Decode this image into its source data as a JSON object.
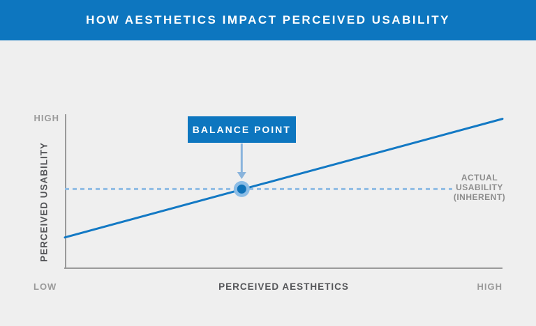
{
  "header": {
    "title": "HOW AESTHETICS IMPACT PERCEIVED USABILITY"
  },
  "chart_data": {
    "type": "line",
    "title": "HOW AESTHETICS IMPACT PERCEIVED USABILITY",
    "xlabel": "PERCEIVED AESTHETICS",
    "ylabel": "PERCEIVED USABILITY",
    "x_tick_labels": [
      "LOW",
      "HIGH"
    ],
    "y_tick_labels": [
      "HIGH"
    ],
    "axis_style": "qualitative LOW-to-HIGH axes, no numeric ticks, no gridlines",
    "legend": "none",
    "series": [
      {
        "name": "perceived usability (rises with aesthetics)",
        "style": "solid",
        "x": [
          0.0,
          1.0
        ],
        "y": [
          0.2,
          0.97
        ]
      },
      {
        "name": "actual usability (inherent)",
        "style": "dashed",
        "label_lines": [
          "ACTUAL",
          "USABILITY",
          "(INHERENT)"
        ],
        "x": [
          0.0,
          0.885
        ],
        "y": [
          0.514,
          0.514
        ]
      }
    ],
    "annotations": [
      {
        "label": "BALANCE POINT",
        "x": 0.404,
        "y": 0.514,
        "marker": "dot-with-halo"
      }
    ]
  },
  "colors": {
    "banner_blue": "#0d76bf",
    "trend_blue": "#1379c4",
    "dashed_blue": "#8fbce4",
    "arrow_blue": "#8ab4dc",
    "halo_blue": "#8cbde6",
    "dot_blue": "#0f72b8",
    "background_gray": "#efefef",
    "axis_gray": "#9a9a9a",
    "tick_label_gray": "#9a9a9a",
    "axis_title_gray": "#555659",
    "annotation_text_gray": "#8d8d8d"
  }
}
